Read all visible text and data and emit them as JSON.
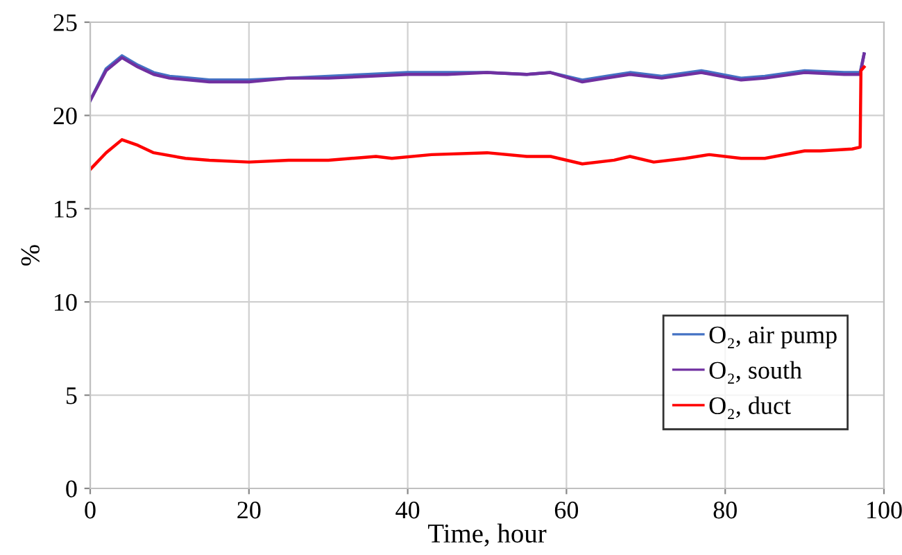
{
  "chart_data": {
    "type": "line",
    "xlabel": "Time, hour",
    "ylabel": "%",
    "xlim": [
      0,
      100
    ],
    "ylim": [
      0,
      25
    ],
    "xticks": [
      0,
      20,
      40,
      60,
      80,
      100
    ],
    "yticks": [
      0,
      5,
      10,
      15,
      20,
      25
    ],
    "grid": true,
    "legend": "bottom right",
    "line_style": "solid",
    "marker": "none",
    "series": [
      {
        "name": "O₂, air pump",
        "color": "#4472c4",
        "x": [
          0,
          2,
          4,
          6,
          8,
          10,
          15,
          20,
          25,
          30,
          35,
          40,
          45,
          50,
          55,
          58,
          62,
          65,
          68,
          72,
          77,
          82,
          85,
          90,
          95,
          97,
          97.5
        ],
        "values": [
          20.8,
          22.5,
          23.2,
          22.7,
          22.3,
          22.1,
          21.9,
          21.9,
          22.0,
          22.1,
          22.2,
          22.3,
          22.3,
          22.3,
          22.2,
          22.3,
          21.9,
          22.1,
          22.3,
          22.1,
          22.4,
          22.0,
          22.1,
          22.4,
          22.3,
          22.3,
          23.3
        ]
      },
      {
        "name": "O₂, south",
        "color": "#7030a0",
        "x": [
          0,
          2,
          4,
          6,
          8,
          10,
          15,
          20,
          25,
          30,
          35,
          40,
          45,
          50,
          55,
          58,
          62,
          65,
          68,
          72,
          77,
          82,
          85,
          90,
          95,
          97,
          97.5
        ],
        "values": [
          20.8,
          22.4,
          23.1,
          22.6,
          22.2,
          22.0,
          21.8,
          21.8,
          22.0,
          22.0,
          22.1,
          22.2,
          22.2,
          22.3,
          22.2,
          22.3,
          21.8,
          22.0,
          22.2,
          22.0,
          22.3,
          21.9,
          22.0,
          22.3,
          22.2,
          22.2,
          23.3
        ]
      },
      {
        "name": "O₂, duct",
        "color": "#ff0000",
        "x": [
          0,
          2,
          4,
          6,
          8,
          12,
          15,
          20,
          25,
          30,
          36,
          38,
          43,
          50,
          55,
          58,
          62,
          66,
          68,
          71,
          75,
          78,
          82,
          85,
          90,
          92,
          96,
          97,
          97.1,
          97.5
        ],
        "values": [
          17.1,
          18.0,
          18.7,
          18.4,
          18.0,
          17.7,
          17.6,
          17.5,
          17.6,
          17.6,
          17.8,
          17.7,
          17.9,
          18.0,
          17.8,
          17.8,
          17.4,
          17.6,
          17.8,
          17.5,
          17.7,
          17.9,
          17.7,
          17.7,
          18.1,
          18.1,
          18.2,
          18.3,
          22.4,
          22.6
        ]
      }
    ]
  }
}
